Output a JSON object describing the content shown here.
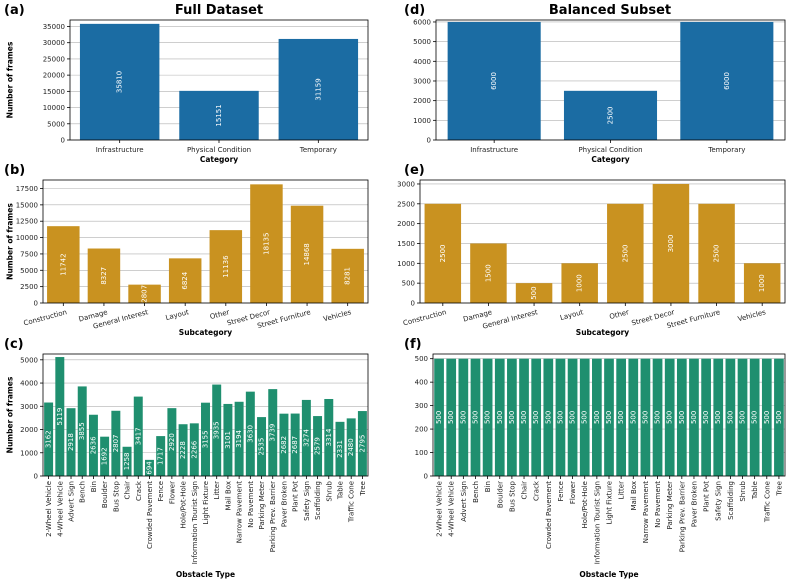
{
  "colors": {
    "infra": "#1b6ca3",
    "sub": "#c99220",
    "obstacle": "#1f8f6f"
  },
  "chart_data": [
    {
      "id": "a",
      "panel_label": "(a)",
      "title": "Full Dataset",
      "type": "bar",
      "xlabel": "Category",
      "ylabel": "Number of frames",
      "categories": [
        "Infrastructure",
        "Physical Condition",
        "Temporary"
      ],
      "values": [
        35810,
        15151,
        31159
      ],
      "ylim": [
        0,
        37000
      ],
      "yticks": [
        0,
        5000,
        10000,
        15000,
        20000,
        25000,
        30000,
        35000
      ],
      "color": "#1b6ca3"
    },
    {
      "id": "d",
      "panel_label": "(d)",
      "title": "Balanced Subset",
      "type": "bar",
      "xlabel": "Category",
      "ylabel": "",
      "categories": [
        "Infrastructure",
        "Physical Condition",
        "Temporary"
      ],
      "values": [
        6000,
        2500,
        6000
      ],
      "ylim": [
        0,
        6100
      ],
      "yticks": [
        0,
        1000,
        2000,
        3000,
        4000,
        5000,
        6000
      ],
      "color": "#1b6ca3"
    },
    {
      "id": "b",
      "panel_label": "(b)",
      "title": "",
      "type": "bar",
      "xlabel": "Subcategory",
      "ylabel": "Number of frames",
      "categories": [
        "Construction",
        "Damage",
        "General Interest",
        "Layout",
        "Other",
        "Street Decor",
        "Street Furniture",
        "Vehicles"
      ],
      "values": [
        11742,
        8327,
        2807,
        6824,
        11136,
        18135,
        14868,
        8281
      ],
      "ylim": [
        0,
        18800
      ],
      "yticks": [
        0,
        2500,
        5000,
        7500,
        10000,
        12500,
        15000,
        17500
      ],
      "color": "#c99220"
    },
    {
      "id": "e",
      "panel_label": "(e)",
      "title": "",
      "type": "bar",
      "xlabel": "Subcategory",
      "ylabel": "",
      "categories": [
        "Construction",
        "Damage",
        "General Interest",
        "Layout",
        "Other",
        "Street Decor",
        "Street Furniture",
        "Vehicles"
      ],
      "values": [
        2500,
        1500,
        500,
        1000,
        2500,
        3000,
        2500,
        1000
      ],
      "ylim": [
        0,
        3100
      ],
      "yticks": [
        0,
        500,
        1000,
        1500,
        2000,
        2500,
        3000
      ],
      "color": "#c99220"
    },
    {
      "id": "c",
      "panel_label": "(c)",
      "title": "",
      "type": "bar",
      "xlabel": "Obstacle Type",
      "ylabel": "Number of frames",
      "categories": [
        "2-Wheel Vehicle",
        "4-Wheel Vehicle",
        "Advert Sign",
        "Bench",
        "Bin",
        "Boulder",
        "Bus Stop",
        "Chair",
        "Crack",
        "Crowded Pavement",
        "Fence",
        "Flower",
        "Hole/Pot-Hole",
        "Information Tourist Sign",
        "Light Fixture",
        "Litter",
        "Mail Box",
        "Narrow Pavement",
        "No Pavement",
        "Parking Meter",
        "Parking Prev. Barrier",
        "Paver Broken",
        "Plant Pot",
        "Safety Sign",
        "Scaffolding",
        "Shrub",
        "Table",
        "Traffic Cone",
        "Tree"
      ],
      "values": [
        3162,
        5119,
        2918,
        3855,
        2636,
        1692,
        2807,
        1258,
        3417,
        694,
        1717,
        2920,
        2228,
        2266,
        3155,
        3935,
        3101,
        3194,
        3630,
        2535,
        3739,
        2682,
        2687,
        3274,
        2579,
        3314,
        2331,
        2480,
        2795
      ],
      "ylim": [
        0,
        5250
      ],
      "yticks": [
        0,
        1000,
        2000,
        3000,
        4000,
        5000
      ],
      "color": "#1f8f6f"
    },
    {
      "id": "f",
      "panel_label": "(f)",
      "title": "",
      "type": "bar",
      "xlabel": "Obstacle Type",
      "ylabel": "",
      "categories": [
        "2-Wheel Vehicle",
        "4-Wheel Vehicle",
        "Advert Sign",
        "Bench",
        "Bin",
        "Boulder",
        "Bus Stop",
        "Chair",
        "Crack",
        "Crowded Pavement",
        "Fence",
        "Flower",
        "Hole/Pot-Hole",
        "Information Tourist Sign",
        "Light Fixture",
        "Litter",
        "Mail Box",
        "Narrow Pavement",
        "No Pavement",
        "Parking Meter",
        "Parking Prev. Barrier",
        "Paver Broken",
        "Plant Pot",
        "Safety Sign",
        "Scaffolding",
        "Shrub",
        "Table",
        "Traffic Cone",
        "Tree"
      ],
      "values": [
        500,
        500,
        500,
        500,
        500,
        500,
        500,
        500,
        500,
        500,
        500,
        500,
        500,
        500,
        500,
        500,
        500,
        500,
        500,
        500,
        500,
        500,
        500,
        500,
        500,
        500,
        500,
        500,
        500
      ],
      "ylim": [
        0,
        520
      ],
      "yticks": [
        0,
        100,
        200,
        300,
        400,
        500
      ],
      "color": "#1f8f6f"
    }
  ]
}
